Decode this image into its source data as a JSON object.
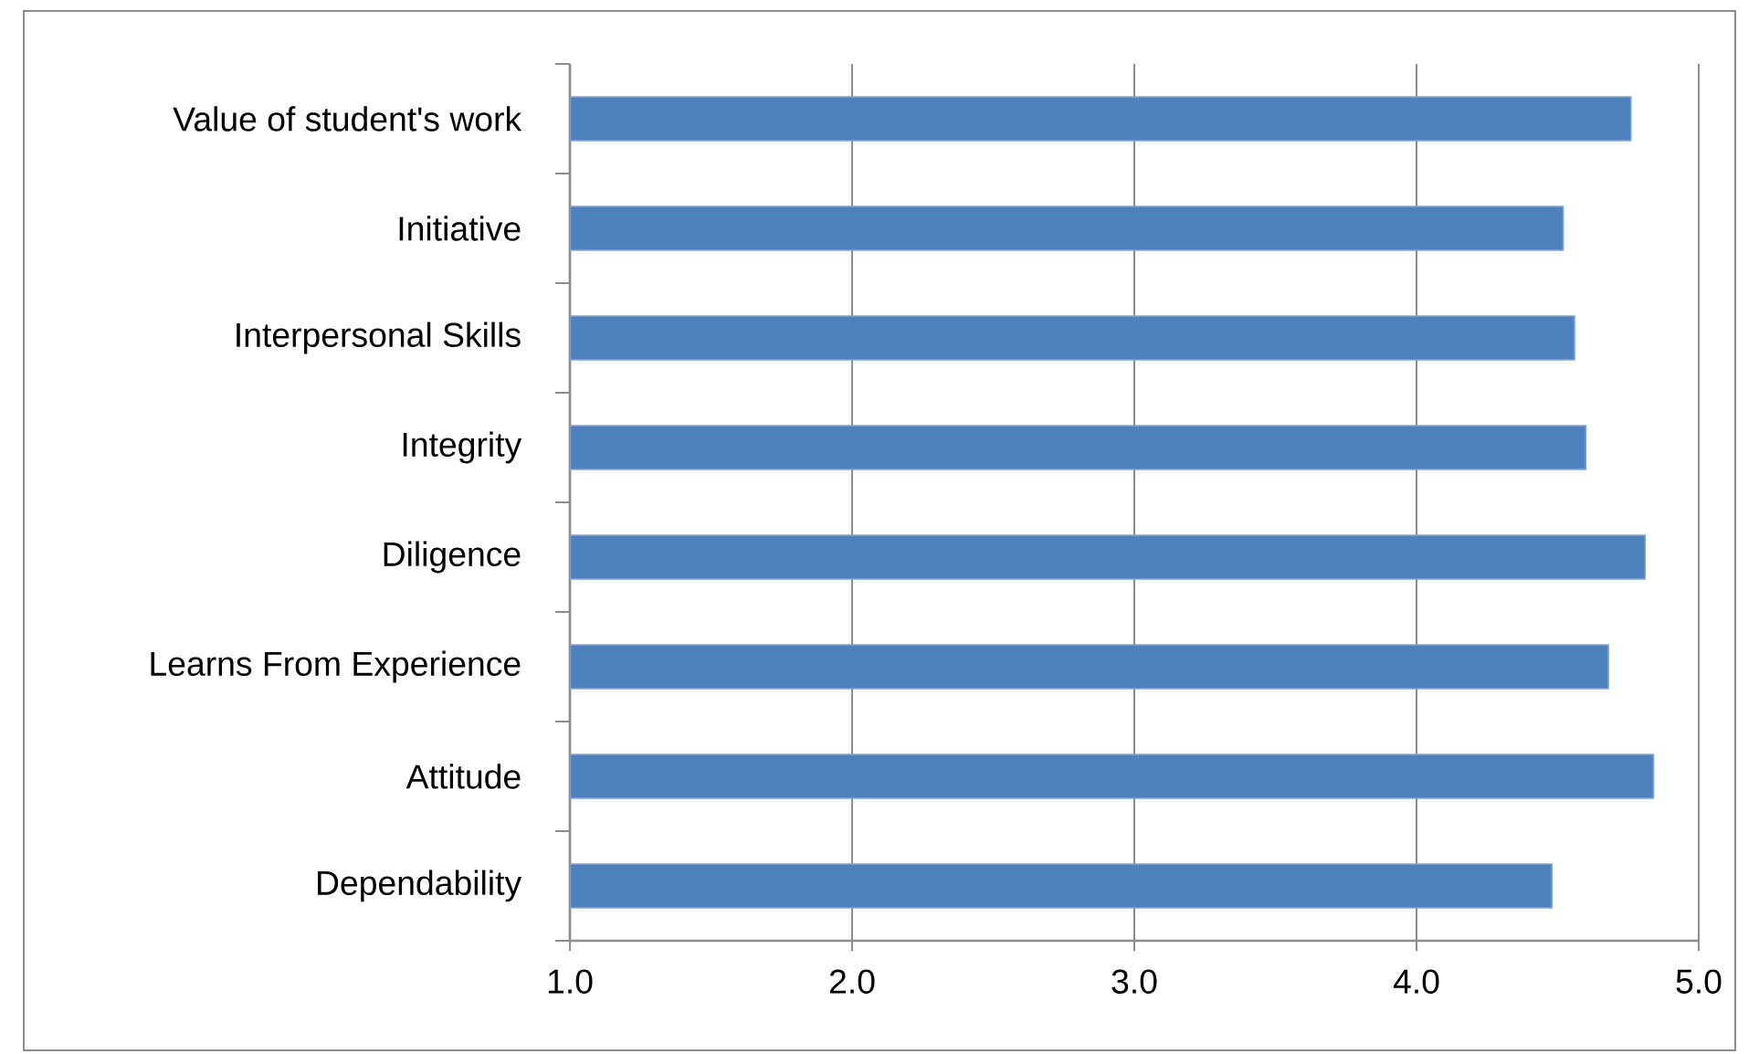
{
  "chart_data": {
    "type": "bar",
    "orientation": "horizontal",
    "categories": [
      "Value of student's work",
      "Initiative",
      "Interpersonal Skills",
      "Integrity",
      "Diligence",
      "Learns From Experience",
      "Attitude",
      "Dependability"
    ],
    "values": [
      4.76,
      4.52,
      4.56,
      4.6,
      4.81,
      4.68,
      4.84,
      4.48
    ],
    "color": "#4f81bd",
    "xlim": [
      1,
      5
    ],
    "xticks": [
      {
        "value": 1,
        "label": "1.0"
      },
      {
        "value": 2,
        "label": "2.0"
      },
      {
        "value": 3,
        "label": "3.0"
      },
      {
        "value": 4,
        "label": "4.0"
      },
      {
        "value": 5,
        "label": "5.0"
      }
    ],
    "grid": "x"
  }
}
